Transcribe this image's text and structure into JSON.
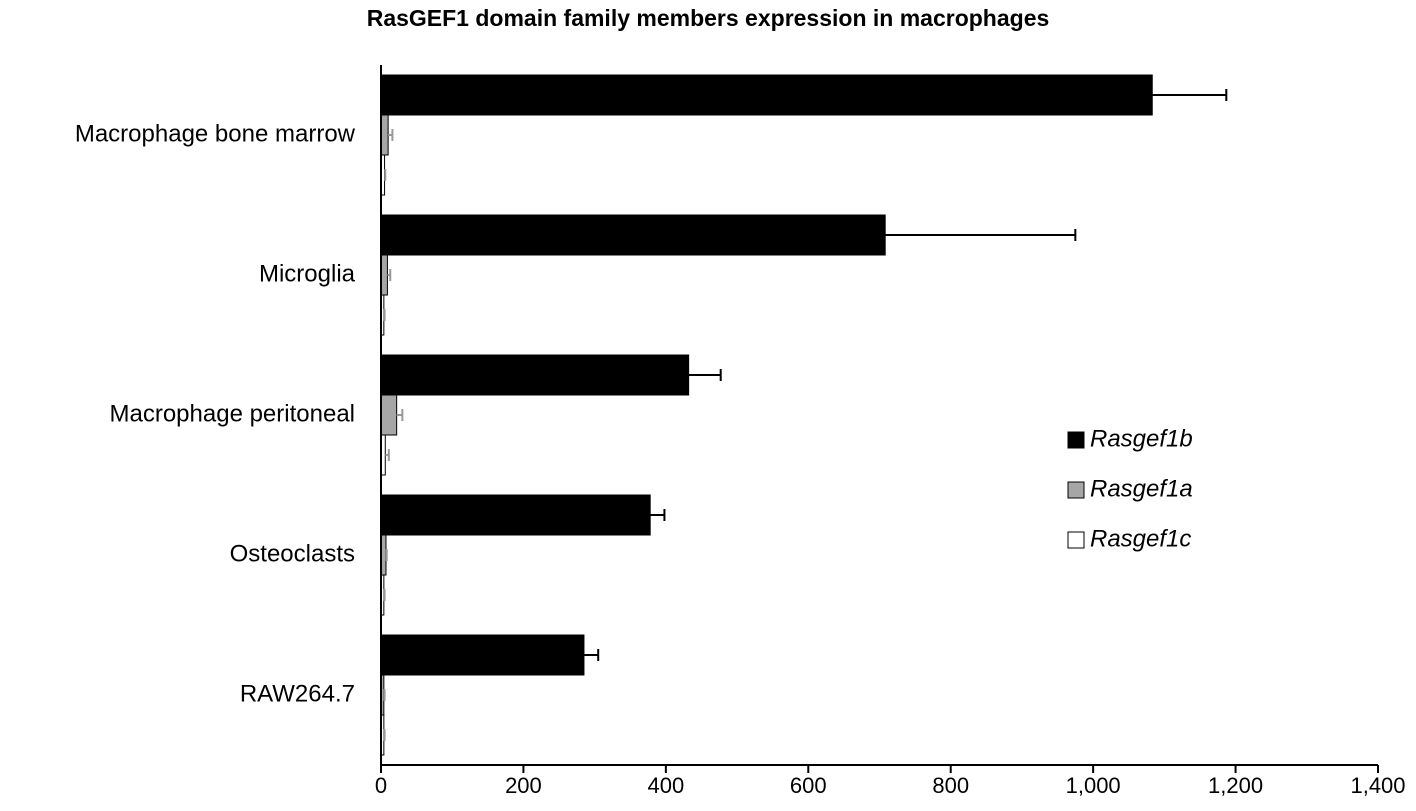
{
  "chart_data": {
    "type": "bar",
    "orientation": "horizontal",
    "title": "RasGEF1 domain family members expression in macrophages",
    "categories": [
      "Macrophage bone marrow",
      "Microglia",
      "Macrophage peritoneal",
      "Osteoclasts",
      "RAW264.7"
    ],
    "series": [
      {
        "name": "Rasgef1b",
        "color": "#000000",
        "values": [
          1083,
          708,
          432,
          378,
          285
        ],
        "errors": [
          104,
          267,
          45,
          20,
          20
        ]
      },
      {
        "name": "Rasgef1a",
        "color": "#a6a6a6",
        "values": [
          10,
          9,
          22,
          7,
          4
        ],
        "errors": [
          6,
          4,
          8,
          1,
          1
        ]
      },
      {
        "name": "Rasgef1c",
        "color": "#ffffff",
        "values": [
          5,
          4,
          6,
          4,
          4
        ],
        "errors": [
          1,
          1,
          5,
          1,
          1
        ]
      }
    ],
    "xlim": [
      0,
      1400
    ],
    "xticks": [
      0,
      200,
      400,
      600,
      800,
      {
        "value": 1000,
        "label": "1,000"
      },
      {
        "value": 1200,
        "label": "1,200"
      },
      {
        "value": 1400,
        "label": "1,400"
      }
    ],
    "legend": "right"
  }
}
